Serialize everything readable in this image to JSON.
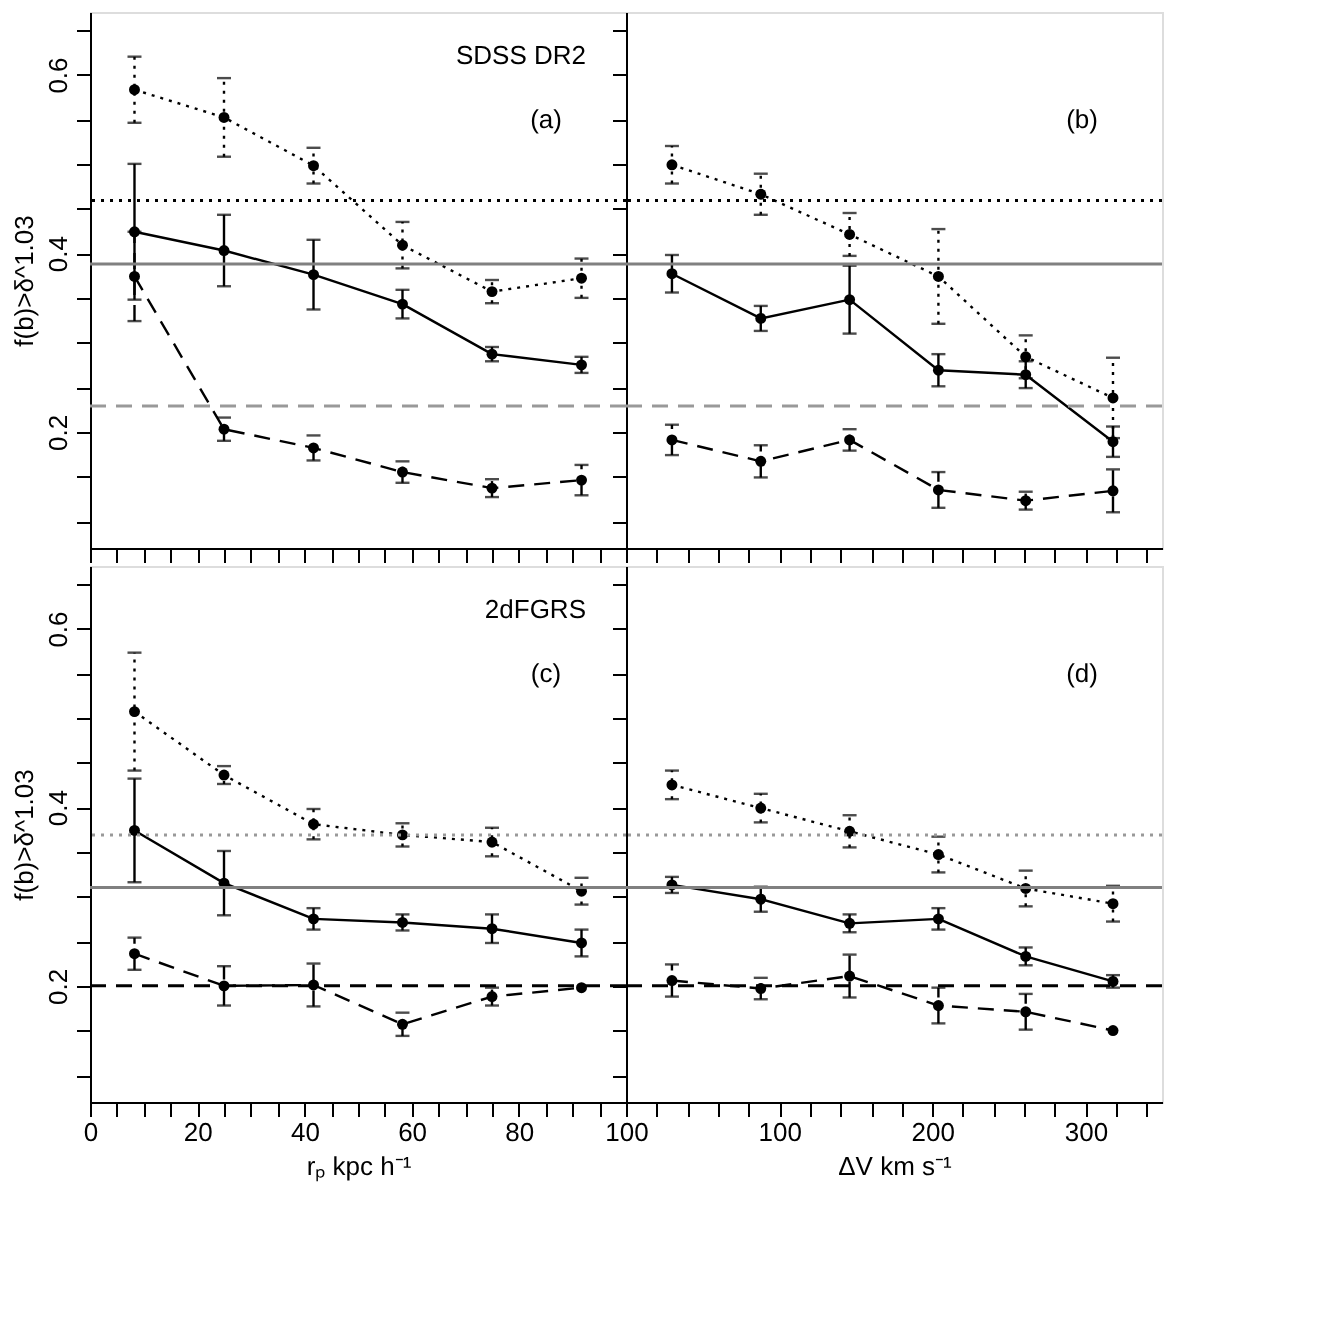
{
  "chart_data": [
    {
      "type": "line",
      "annotations": [
        "SDSS DR2",
        "(a)"
      ],
      "ylabel": "f(b)>δ^1.03",
      "x": [
        8.3,
        25,
        41.7,
        58.3,
        75,
        91.7
      ],
      "xlim": [
        0,
        100
      ],
      "ylim": [
        0.07,
        0.67
      ],
      "xticks": [
        0,
        {
          "value": 5,
          "label": null
        },
        {
          "value": 10,
          "label": null
        },
        {
          "value": 15,
          "label": null
        },
        20,
        {
          "value": 25,
          "label": null
        },
        {
          "value": 30,
          "label": null
        },
        {
          "value": 35,
          "label": null
        },
        40,
        {
          "value": 45,
          "label": null
        },
        {
          "value": 50,
          "label": null
        },
        {
          "value": 55,
          "label": null
        },
        60,
        {
          "value": 65,
          "label": null
        },
        {
          "value": 70,
          "label": null
        },
        {
          "value": 75,
          "label": null
        },
        80,
        {
          "value": 85,
          "label": null
        },
        {
          "value": 90,
          "label": null
        },
        {
          "value": 95,
          "label": null
        },
        100
      ],
      "yticks": [
        {
          "value": 0.1,
          "label": null
        },
        {
          "value": 0.15,
          "label": null
        },
        0.2,
        {
          "value": 0.25,
          "label": null
        },
        {
          "value": 0.3,
          "label": null
        },
        {
          "value": 0.35,
          "label": null
        },
        0.4,
        {
          "value": 0.45,
          "label": null
        },
        {
          "value": 0.5,
          "label": null
        },
        {
          "value": 0.55,
          "label": null
        },
        0.6,
        {
          "value": 0.65,
          "label": null
        }
      ],
      "tick_labels": "y",
      "grid": false,
      "marker": "circle",
      "series": [
        {
          "color": "#000000",
          "line_style": "dotted",
          "values": [
            0.583,
            0.552,
            0.498,
            0.409,
            0.357,
            0.372
          ],
          "errors": [
            0.037,
            0.044,
            0.02,
            0.026,
            0.013,
            0.022
          ]
        },
        {
          "color": "#000000",
          "line_style": "solid",
          "values": [
            0.424,
            0.403,
            0.376,
            0.343,
            0.287,
            0.275
          ],
          "errors": [
            0.076,
            0.04,
            0.039,
            0.016,
            0.008,
            0.009
          ]
        },
        {
          "color": "#000000",
          "line_style": "dashed",
          "values": [
            0.374,
            0.203,
            0.182,
            0.155,
            0.137,
            0.146
          ],
          "errors": [
            0.05,
            0.013,
            0.014,
            0.012,
            0.01,
            0.017
          ]
        }
      ],
      "ref_lines": [
        {
          "axis": "y",
          "value": 0.459,
          "color": "#000000",
          "line_style": "dotted"
        },
        {
          "axis": "y",
          "value": 0.388,
          "color": "#808080",
          "line_style": "solid"
        },
        {
          "axis": "y",
          "value": 0.229,
          "color": "#999999",
          "line_style": "dashed"
        }
      ]
    },
    {
      "type": "line",
      "annotations": [
        "(b)"
      ],
      "x": [
        30,
        88,
        146,
        204,
        261,
        318
      ],
      "xlim": [
        0,
        350
      ],
      "ylim": [
        0.07,
        0.67
      ],
      "xticks": [
        {
          "value": 0,
          "label": null
        },
        {
          "value": 20,
          "label": null
        },
        {
          "value": 40,
          "label": null
        },
        {
          "value": 60,
          "label": null
        },
        {
          "value": 80,
          "label": null
        },
        100,
        {
          "value": 120,
          "label": null
        },
        {
          "value": 140,
          "label": null
        },
        {
          "value": 160,
          "label": null
        },
        {
          "value": 180,
          "label": null
        },
        200,
        {
          "value": 220,
          "label": null
        },
        {
          "value": 240,
          "label": null
        },
        {
          "value": 260,
          "label": null
        },
        {
          "value": 280,
          "label": null
        },
        300,
        {
          "value": 320,
          "label": null
        },
        {
          "value": 340,
          "label": null
        }
      ],
      "yticks": [
        {
          "value": 0.1,
          "label": null
        },
        {
          "value": 0.15,
          "label": null
        },
        0.2,
        {
          "value": 0.25,
          "label": null
        },
        {
          "value": 0.3,
          "label": null
        },
        {
          "value": 0.35,
          "label": null
        },
        0.4,
        {
          "value": 0.45,
          "label": null
        },
        {
          "value": 0.5,
          "label": null
        },
        {
          "value": 0.55,
          "label": null
        },
        0.6,
        {
          "value": 0.65,
          "label": null
        }
      ],
      "tick_labels": false,
      "grid": false,
      "marker": "circle",
      "series": [
        {
          "color": "#000000",
          "line_style": "dotted",
          "values": [
            0.499,
            0.466,
            0.421,
            0.374,
            0.284,
            0.238
          ],
          "errors": [
            0.021,
            0.023,
            0.024,
            0.053,
            0.024,
            0.045
          ]
        },
        {
          "color": "#000000",
          "line_style": "solid",
          "values": [
            0.377,
            0.327,
            0.348,
            0.269,
            0.264,
            0.189
          ],
          "errors": [
            0.021,
            0.014,
            0.038,
            0.018,
            0.015,
            0.017
          ]
        },
        {
          "color": "#000000",
          "line_style": "dashed",
          "values": [
            0.191,
            0.167,
            0.191,
            0.135,
            0.123,
            0.134
          ],
          "errors": [
            0.017,
            0.018,
            0.012,
            0.02,
            0.01,
            0.024
          ]
        }
      ],
      "ref_lines": [
        {
          "axis": "y",
          "value": 0.459,
          "color": "#000000",
          "line_style": "dotted"
        },
        {
          "axis": "y",
          "value": 0.388,
          "color": "#808080",
          "line_style": "solid"
        },
        {
          "axis": "y",
          "value": 0.229,
          "color": "#999999",
          "line_style": "dashed"
        }
      ]
    },
    {
      "type": "line",
      "annotations": [
        "2dFGRS",
        "(c)"
      ],
      "ylabel": "f(b)>δ^1.03",
      "xlabel": "rₚ kpc h⁻¹",
      "x": [
        8.3,
        25,
        41.7,
        58.3,
        75,
        91.7
      ],
      "xlim": [
        0,
        100
      ],
      "ylim": [
        0.07,
        0.67
      ],
      "xticks": [
        0,
        {
          "value": 5,
          "label": null
        },
        {
          "value": 10,
          "label": null
        },
        {
          "value": 15,
          "label": null
        },
        20,
        {
          "value": 25,
          "label": null
        },
        {
          "value": 30,
          "label": null
        },
        {
          "value": 35,
          "label": null
        },
        40,
        {
          "value": 45,
          "label": null
        },
        {
          "value": 50,
          "label": null
        },
        {
          "value": 55,
          "label": null
        },
        60,
        {
          "value": 65,
          "label": null
        },
        {
          "value": 70,
          "label": null
        },
        {
          "value": 75,
          "label": null
        },
        80,
        {
          "value": 85,
          "label": null
        },
        {
          "value": 90,
          "label": null
        },
        {
          "value": 95,
          "label": null
        },
        100
      ],
      "yticks": [
        {
          "value": 0.1,
          "label": null
        },
        {
          "value": 0.15,
          "label": null
        },
        0.2,
        {
          "value": 0.25,
          "label": null
        },
        {
          "value": 0.3,
          "label": null
        },
        {
          "value": 0.35,
          "label": null
        },
        0.4,
        {
          "value": 0.45,
          "label": null
        },
        {
          "value": 0.5,
          "label": null
        },
        {
          "value": 0.55,
          "label": null
        },
        0.6,
        {
          "value": 0.65,
          "label": null
        }
      ],
      "grid": false,
      "marker": "circle",
      "series": [
        {
          "color": "#000000",
          "line_style": "dotted",
          "values": [
            0.507,
            0.436,
            0.381,
            0.369,
            0.361,
            0.306
          ],
          "errors": [
            0.066,
            0.01,
            0.017,
            0.013,
            0.016,
            0.015
          ]
        },
        {
          "color": "#000000",
          "line_style": "solid",
          "values": [
            0.374,
            0.315,
            0.275,
            0.271,
            0.264,
            0.248
          ],
          "errors": [
            0.058,
            0.036,
            0.012,
            0.009,
            0.016,
            0.015
          ]
        },
        {
          "color": "#000000",
          "line_style": "dashed",
          "values": [
            0.236,
            0.2,
            0.201,
            0.157,
            0.188,
            0.198
          ],
          "errors": [
            0.018,
            0.022,
            0.024,
            0.013,
            0.01,
            null
          ]
        }
      ],
      "ref_lines": [
        {
          "axis": "y",
          "value": 0.369,
          "color": "#999999",
          "line_style": "dotted"
        },
        {
          "axis": "y",
          "value": 0.31,
          "color": "#808080",
          "line_style": "solid"
        },
        {
          "axis": "y",
          "value": 0.2,
          "color": "#000000",
          "line_style": "dashed"
        }
      ]
    },
    {
      "type": "line",
      "annotations": [
        "(d)"
      ],
      "xlabel": "ΔV km s⁻¹",
      "x": [
        30,
        88,
        146,
        204,
        261,
        318
      ],
      "xlim": [
        0,
        350
      ],
      "ylim": [
        0.07,
        0.67
      ],
      "xticks": [
        {
          "value": 0,
          "label": null
        },
        {
          "value": 20,
          "label": null
        },
        {
          "value": 40,
          "label": null
        },
        {
          "value": 60,
          "label": null
        },
        {
          "value": 80,
          "label": null
        },
        100,
        {
          "value": 120,
          "label": null
        },
        {
          "value": 140,
          "label": null
        },
        {
          "value": 160,
          "label": null
        },
        {
          "value": 180,
          "label": null
        },
        200,
        {
          "value": 220,
          "label": null
        },
        {
          "value": 240,
          "label": null
        },
        {
          "value": 260,
          "label": null
        },
        {
          "value": 280,
          "label": null
        },
        300,
        {
          "value": 320,
          "label": null
        },
        {
          "value": 340,
          "label": null
        }
      ],
      "yticks": [
        {
          "value": 0.1,
          "label": null
        },
        {
          "value": 0.15,
          "label": null
        },
        0.2,
        {
          "value": 0.25,
          "label": null
        },
        {
          "value": 0.3,
          "label": null
        },
        {
          "value": 0.35,
          "label": null
        },
        0.4,
        {
          "value": 0.45,
          "label": null
        },
        {
          "value": 0.5,
          "label": null
        },
        {
          "value": 0.55,
          "label": null
        },
        0.6,
        {
          "value": 0.65,
          "label": null
        }
      ],
      "tick_labels": "x",
      "grid": false,
      "marker": "circle",
      "series": [
        {
          "color": "#000000",
          "line_style": "dotted",
          "values": [
            0.425,
            0.399,
            0.373,
            0.347,
            0.309,
            0.292
          ],
          "errors": [
            0.016,
            0.016,
            0.018,
            0.02,
            0.02,
            0.02
          ]
        },
        {
          "color": "#000000",
          "line_style": "solid",
          "values": [
            0.313,
            0.297,
            0.27,
            0.275,
            0.233,
            0.205
          ],
          "errors": [
            0.009,
            0.014,
            0.01,
            0.012,
            0.01,
            0.007
          ]
        },
        {
          "color": "#000000",
          "line_style": "dashed",
          "values": [
            0.206,
            0.197,
            0.211,
            0.178,
            0.171,
            0.15
          ],
          "errors": [
            0.018,
            0.012,
            0.024,
            0.02,
            0.02,
            null
          ]
        }
      ],
      "ref_lines": [
        {
          "axis": "y",
          "value": 0.369,
          "color": "#999999",
          "line_style": "dotted"
        },
        {
          "axis": "y",
          "value": 0.31,
          "color": "#808080",
          "line_style": "solid"
        },
        {
          "axis": "y",
          "value": 0.2,
          "color": "#000000",
          "line_style": "dashed"
        }
      ]
    }
  ]
}
